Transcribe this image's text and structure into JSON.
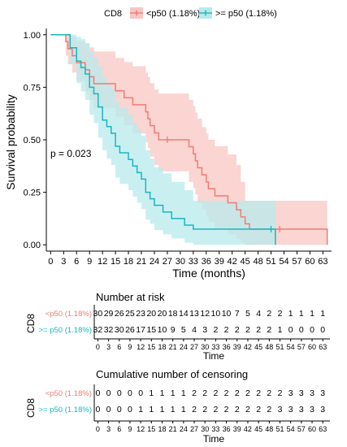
{
  "chart_data": [
    {
      "type": "line",
      "subtype": "kaplan-meier",
      "legend_title": "CD8",
      "legend_position": "top",
      "xlabel": "Time (months)",
      "ylabel": "Survival probability",
      "x_ticks": [
        0,
        3,
        6,
        9,
        12,
        15,
        18,
        21,
        24,
        27,
        30,
        33,
        36,
        39,
        42,
        45,
        48,
        51,
        54,
        57,
        60,
        63
      ],
      "y_ticks": [
        0.0,
        0.25,
        0.5,
        0.75,
        1.0
      ],
      "y_tick_labels": [
        "0.00",
        "0.25",
        "0.50",
        "0.75",
        "1.00"
      ],
      "xlim": [
        -1,
        65
      ],
      "ylim": [
        -0.03,
        1.03
      ],
      "annotation": "p = 0.023",
      "series": [
        {
          "name": "<p50 (1.18%)",
          "color": "#f07c74",
          "band_color": "#f8c7c3",
          "steps": [
            [
              0,
              1.0
            ],
            [
              3.5,
              0.967
            ],
            [
              4,
              0.933
            ],
            [
              5,
              0.9
            ],
            [
              6,
              0.867
            ],
            [
              8,
              0.833
            ],
            [
              9,
              0.8
            ],
            [
              10,
              0.767
            ],
            [
              15,
              0.733
            ],
            [
              17,
              0.7
            ],
            [
              19,
              0.667
            ],
            [
              22,
              0.633
            ],
            [
              22.5,
              0.6
            ],
            [
              23,
              0.567
            ],
            [
              24,
              0.533
            ],
            [
              25,
              0.5
            ],
            [
              32,
              0.467
            ],
            [
              33,
              0.433
            ],
            [
              33.5,
              0.4
            ],
            [
              34,
              0.367
            ],
            [
              35,
              0.333
            ],
            [
              36,
              0.3
            ],
            [
              36.5,
              0.267
            ],
            [
              38,
              0.233
            ],
            [
              41,
              0.2
            ],
            [
              43,
              0.167
            ],
            [
              44,
              0.133
            ],
            [
              45,
              0.1
            ],
            [
              46,
              0.075
            ],
            [
              64,
              0.0
            ]
          ],
          "end_x": 64,
          "ci_lower": [
            [
              0,
              1.0
            ],
            [
              3.5,
              0.9
            ],
            [
              4,
              0.86
            ],
            [
              5,
              0.82
            ],
            [
              6,
              0.78
            ],
            [
              8,
              0.73
            ],
            [
              9,
              0.69
            ],
            [
              10,
              0.65
            ],
            [
              15,
              0.61
            ],
            [
              17,
              0.57
            ],
            [
              19,
              0.53
            ],
            [
              22,
              0.49
            ],
            [
              22.5,
              0.46
            ],
            [
              23,
              0.42
            ],
            [
              24,
              0.38
            ],
            [
              25,
              0.35
            ],
            [
              32,
              0.3
            ],
            [
              33,
              0.27
            ],
            [
              33.5,
              0.24
            ],
            [
              34,
              0.2
            ],
            [
              35,
              0.17
            ],
            [
              36,
              0.14
            ],
            [
              36.5,
              0.11
            ],
            [
              38,
              0.08
            ],
            [
              41,
              0.05
            ],
            [
              43,
              0.03
            ],
            [
              44,
              0.01
            ],
            [
              45,
              0.0
            ],
            [
              64,
              0.0
            ]
          ],
          "ci_upper": [
            [
              0,
              1.0
            ],
            [
              3.5,
              1.0
            ],
            [
              5,
              0.99
            ],
            [
              6,
              0.97
            ],
            [
              8,
              0.96
            ],
            [
              9,
              0.94
            ],
            [
              10,
              0.92
            ],
            [
              15,
              0.89
            ],
            [
              17,
              0.87
            ],
            [
              19,
              0.85
            ],
            [
              22,
              0.82
            ],
            [
              22.5,
              0.8
            ],
            [
              23,
              0.77
            ],
            [
              24,
              0.74
            ],
            [
              25,
              0.72
            ],
            [
              32,
              0.69
            ],
            [
              33,
              0.66
            ],
            [
              33.5,
              0.63
            ],
            [
              34,
              0.6
            ],
            [
              35,
              0.56
            ],
            [
              36,
              0.53
            ],
            [
              36.5,
              0.5
            ],
            [
              38,
              0.47
            ],
            [
              41,
              0.43
            ],
            [
              43,
              0.38
            ],
            [
              44,
              0.3
            ],
            [
              45,
              0.21
            ],
            [
              64,
              0.21
            ]
          ],
          "censor_times": [
            27,
            53
          ]
        },
        {
          "name": ">= p50 (1.18%)",
          "color": "#17b8bf",
          "band_color": "#b8eaec",
          "steps": [
            [
              0,
              1.0
            ],
            [
              4.5,
              0.938
            ],
            [
              6,
              0.875
            ],
            [
              7,
              0.844
            ],
            [
              8,
              0.813
            ],
            [
              9,
              0.75
            ],
            [
              10,
              0.719
            ],
            [
              11,
              0.656
            ],
            [
              12,
              0.594
            ],
            [
              13,
              0.563
            ],
            [
              14,
              0.531
            ],
            [
              15,
              0.469
            ],
            [
              16,
              0.438
            ],
            [
              18,
              0.406
            ],
            [
              19,
              0.375
            ],
            [
              20,
              0.344
            ],
            [
              21,
              0.313
            ],
            [
              22,
              0.25
            ],
            [
              23,
              0.219
            ],
            [
              24,
              0.188
            ],
            [
              26,
              0.156
            ],
            [
              28,
              0.125
            ],
            [
              31,
              0.094
            ],
            [
              33,
              0.075
            ],
            [
              52,
              0.0
            ]
          ],
          "end_x": 52,
          "ci_lower": [
            [
              0,
              1.0
            ],
            [
              4.5,
              0.86
            ],
            [
              6,
              0.77
            ],
            [
              7,
              0.73
            ],
            [
              8,
              0.69
            ],
            [
              9,
              0.62
            ],
            [
              10,
              0.58
            ],
            [
              11,
              0.51
            ],
            [
              12,
              0.45
            ],
            [
              13,
              0.41
            ],
            [
              14,
              0.38
            ],
            [
              15,
              0.32
            ],
            [
              16,
              0.29
            ],
            [
              18,
              0.26
            ],
            [
              19,
              0.23
            ],
            [
              20,
              0.2
            ],
            [
              21,
              0.17
            ],
            [
              22,
              0.12
            ],
            [
              23,
              0.1
            ],
            [
              24,
              0.07
            ],
            [
              26,
              0.05
            ],
            [
              28,
              0.03
            ],
            [
              31,
              0.01
            ],
            [
              33,
              0.0
            ],
            [
              52,
              0.0
            ]
          ],
          "ci_upper": [
            [
              0,
              1.0
            ],
            [
              4.5,
              1.0
            ],
            [
              6,
              0.99
            ],
            [
              7,
              0.98
            ],
            [
              8,
              0.96
            ],
            [
              9,
              0.92
            ],
            [
              10,
              0.89
            ],
            [
              11,
              0.85
            ],
            [
              12,
              0.8
            ],
            [
              13,
              0.77
            ],
            [
              14,
              0.74
            ],
            [
              15,
              0.68
            ],
            [
              16,
              0.65
            ],
            [
              18,
              0.62
            ],
            [
              19,
              0.58
            ],
            [
              20,
              0.55
            ],
            [
              21,
              0.52
            ],
            [
              22,
              0.45
            ],
            [
              23,
              0.41
            ],
            [
              24,
              0.37
            ],
            [
              26,
              0.34
            ],
            [
              28,
              0.3
            ],
            [
              31,
              0.26
            ],
            [
              33,
              0.21
            ],
            [
              52,
              0.21
            ]
          ],
          "censor_times": [
            51
          ]
        }
      ]
    },
    {
      "type": "table",
      "title": "Number at risk",
      "ylabel": "CD8",
      "xlabel": "Time",
      "x_ticks": [
        0,
        3,
        6,
        9,
        12,
        15,
        18,
        21,
        24,
        27,
        30,
        33,
        36,
        39,
        42,
        45,
        48,
        51,
        54,
        57,
        60,
        63
      ],
      "row_labels": [
        "<p50 (1.18%)",
        ">= p50 (1.18%)"
      ],
      "row_colors": [
        "#f07c74",
        "#17b8bf"
      ],
      "rows": [
        [
          30,
          29,
          26,
          25,
          23,
          20,
          20,
          18,
          14,
          13,
          12,
          10,
          10,
          7,
          5,
          4,
          2,
          2,
          1,
          1,
          1,
          1
        ],
        [
          32,
          32,
          30,
          26,
          17,
          15,
          10,
          9,
          5,
          4,
          3,
          2,
          2,
          2,
          2,
          2,
          2,
          1,
          0,
          0,
          0,
          0
        ]
      ]
    },
    {
      "type": "table",
      "title": "Cumulative number of censoring",
      "ylabel": "CD8",
      "xlabel": "Time",
      "x_ticks": [
        0,
        3,
        6,
        9,
        12,
        15,
        18,
        21,
        24,
        27,
        30,
        33,
        36,
        39,
        42,
        45,
        48,
        51,
        54,
        57,
        60,
        63
      ],
      "row_labels": [
        "<p50 (1.18%)",
        ">= p50 (1.18%)"
      ],
      "row_colors": [
        "#f07c74",
        "#17b8bf"
      ],
      "rows": [
        [
          0,
          0,
          0,
          0,
          0,
          1,
          1,
          1,
          1,
          2,
          2,
          2,
          2,
          2,
          2,
          2,
          2,
          2,
          3,
          3,
          3,
          3
        ],
        [
          0,
          0,
          0,
          0,
          1,
          1,
          1,
          1,
          1,
          2,
          2,
          2,
          2,
          2,
          2,
          2,
          2,
          3,
          3,
          3,
          3,
          3
        ]
      ]
    }
  ]
}
